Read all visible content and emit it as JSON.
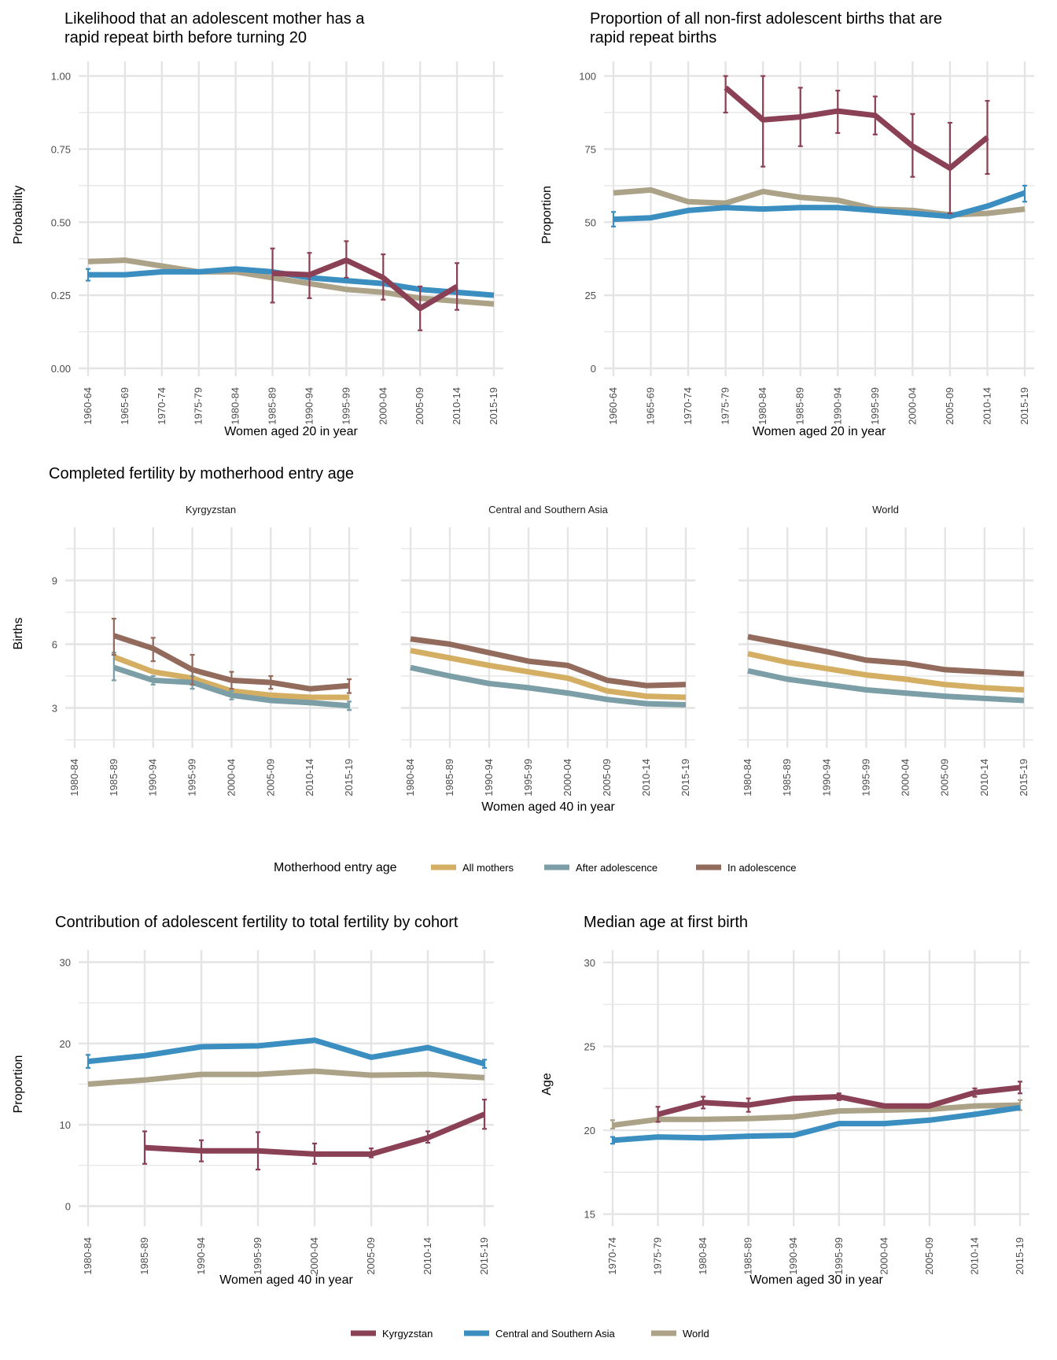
{
  "colors": {
    "kyrgyzstan": "#8B4155",
    "central_southern_asia": "#3A8FC0",
    "world": "#ACA288",
    "all_mothers": "#D4AE63",
    "after_adolescence": "#7C9EA6",
    "in_adolescence": "#926B5D",
    "grid": "#E4E4E4"
  },
  "legends": {
    "region": {
      "items": [
        {
          "key": "kyrgyzstan",
          "label": "Kyrgyzstan"
        },
        {
          "key": "central_southern_asia",
          "label": "Central and Southern Asia"
        },
        {
          "key": "world",
          "label": "World"
        }
      ]
    },
    "entry_age": {
      "title": "Motherhood entry age",
      "items": [
        {
          "key": "all_mothers",
          "label": "All mothers"
        },
        {
          "key": "after_adolescence",
          "label": "After adolescence"
        },
        {
          "key": "in_adolescence",
          "label": "In adolescence"
        }
      ]
    }
  },
  "chart_data": [
    {
      "id": "rapid-repeat-likelihood",
      "type": "line",
      "title": "Likelihood that an adolescent mother has a\nrapid repeat birth before turning 20",
      "xlabel": "Women aged 20 in year",
      "ylabel": "Probability",
      "categories": [
        "1960-64",
        "1965-69",
        "1970-74",
        "1975-79",
        "1980-84",
        "1985-89",
        "1990-94",
        "1995-99",
        "2000-04",
        "2005-09",
        "2010-14",
        "2015-19"
      ],
      "ylim": [
        0,
        1.05
      ],
      "yticks": [
        0,
        0.25,
        0.5,
        0.75,
        1.0
      ],
      "ytick_labels": [
        "0.00",
        "0.25",
        "0.50",
        "0.75",
        "1.00"
      ],
      "series": [
        {
          "name": "World",
          "key": "world",
          "values": [
            0.365,
            0.37,
            0.35,
            0.33,
            0.33,
            0.31,
            0.29,
            0.27,
            0.26,
            0.24,
            0.23,
            0.22
          ]
        },
        {
          "name": "Central and Southern Asia",
          "key": "central_southern_asia",
          "values": [
            0.32,
            0.32,
            0.33,
            0.33,
            0.34,
            0.33,
            0.31,
            0.3,
            0.29,
            0.27,
            0.26,
            0.25
          ],
          "err_low": [
            0.3,
            null,
            null,
            null,
            null,
            null,
            null,
            null,
            null,
            null,
            null,
            null
          ],
          "err_high": [
            0.34,
            null,
            null,
            null,
            null,
            null,
            null,
            null,
            null,
            null,
            null,
            null
          ]
        },
        {
          "name": "Kyrgyzstan",
          "key": "kyrgyzstan",
          "values": [
            null,
            null,
            null,
            null,
            null,
            0.325,
            0.32,
            0.37,
            0.31,
            0.205,
            0.28,
            null
          ],
          "err_low": [
            null,
            null,
            null,
            null,
            null,
            0.225,
            0.24,
            0.31,
            0.235,
            0.13,
            0.2,
            null
          ],
          "err_high": [
            null,
            null,
            null,
            null,
            null,
            0.41,
            0.395,
            0.435,
            0.39,
            0.28,
            0.36,
            null
          ]
        }
      ]
    },
    {
      "id": "rapid-repeat-proportion",
      "type": "line",
      "title": "Proportion of all non-first adolescent births that are\nrapid repeat births",
      "xlabel": "Women aged 20 in year",
      "ylabel": "Proportion",
      "categories": [
        "1960-64",
        "1965-69",
        "1970-74",
        "1975-79",
        "1980-84",
        "1985-89",
        "1990-94",
        "1995-99",
        "2000-04",
        "2005-09",
        "2010-14",
        "2015-19"
      ],
      "ylim": [
        0,
        105
      ],
      "yticks": [
        0,
        25,
        50,
        75,
        100
      ],
      "ytick_labels": [
        "0",
        "25",
        "50",
        "75",
        "100"
      ],
      "series": [
        {
          "name": "World",
          "key": "world",
          "values": [
            60,
            61,
            57,
            56.5,
            60.5,
            58.5,
            57.5,
            54.5,
            54,
            52.5,
            53,
            54.5
          ]
        },
        {
          "name": "Central and Southern Asia",
          "key": "central_southern_asia",
          "values": [
            51,
            51.5,
            54,
            55,
            54.5,
            55,
            55,
            54,
            53,
            52,
            55.5,
            60
          ],
          "err_low": [
            48.5,
            null,
            null,
            null,
            null,
            null,
            null,
            null,
            null,
            null,
            null,
            57
          ],
          "err_high": [
            53.5,
            null,
            null,
            null,
            null,
            null,
            null,
            null,
            null,
            null,
            null,
            62.5
          ]
        },
        {
          "name": "Kyrgyzstan",
          "key": "kyrgyzstan",
          "values": [
            null,
            null,
            null,
            96,
            85,
            86,
            88,
            86.5,
            76,
            68.5,
            79,
            null
          ],
          "err_low": [
            null,
            null,
            null,
            87.5,
            69,
            76,
            80.5,
            80,
            65.5,
            53,
            66.5,
            null
          ],
          "err_high": [
            null,
            null,
            null,
            100,
            100,
            96,
            95,
            93,
            87,
            84,
            91.5,
            null
          ]
        }
      ]
    },
    {
      "id": "completed-fertility",
      "type": "line",
      "title": "Completed fertility by motherhood entry age",
      "xlabel": "Women aged 40 in year",
      "ylabel": "Births",
      "categories": [
        "1980-84",
        "1985-89",
        "1990-94",
        "1995-99",
        "2000-04",
        "2005-09",
        "2010-14",
        "2015-19"
      ],
      "ylim": [
        1.5,
        11.5
      ],
      "yticks": [
        3,
        6,
        9
      ],
      "ytick_labels": [
        "3",
        "6",
        "9"
      ],
      "facets": [
        {
          "title": "Kyrgyzstan",
          "series": [
            {
              "name": "All mothers",
              "key": "all_mothers",
              "values": [
                null,
                5.4,
                4.7,
                4.4,
                3.8,
                3.6,
                3.5,
                3.5
              ]
            },
            {
              "name": "After adolescence",
              "key": "after_adolescence",
              "values": [
                null,
                4.9,
                4.3,
                4.2,
                3.6,
                3.35,
                3.25,
                3.1
              ],
              "err_low": [
                null,
                4.3,
                4.1,
                3.9,
                3.4,
                null,
                null,
                2.9
              ],
              "err_high": [
                null,
                5.6,
                4.5,
                4.5,
                3.8,
                null,
                null,
                3.3
              ]
            },
            {
              "name": "In adolescence",
              "key": "in_adolescence",
              "values": [
                null,
                6.4,
                5.8,
                4.8,
                4.3,
                4.2,
                3.9,
                4.05
              ],
              "err_low": [
                null,
                5.5,
                5.2,
                4.1,
                3.9,
                3.9,
                null,
                3.7
              ],
              "err_high": [
                null,
                7.2,
                6.3,
                5.5,
                4.7,
                4.5,
                null,
                4.35
              ]
            }
          ]
        },
        {
          "title": "Central and Southern Asia",
          "series": [
            {
              "name": "All mothers",
              "key": "all_mothers",
              "values": [
                5.7,
                5.35,
                5.0,
                4.7,
                4.4,
                3.8,
                3.55,
                3.5
              ]
            },
            {
              "name": "After adolescence",
              "key": "after_adolescence",
              "values": [
                4.9,
                4.5,
                4.15,
                3.95,
                3.7,
                3.4,
                3.2,
                3.15
              ]
            },
            {
              "name": "In adolescence",
              "key": "in_adolescence",
              "values": [
                6.25,
                6.0,
                5.6,
                5.2,
                5.0,
                4.3,
                4.05,
                4.1
              ]
            }
          ]
        },
        {
          "title": "World",
          "series": [
            {
              "name": "All mothers",
              "key": "all_mothers",
              "values": [
                5.55,
                5.15,
                4.85,
                4.55,
                4.35,
                4.1,
                3.95,
                3.85
              ]
            },
            {
              "name": "After adolescence",
              "key": "after_adolescence",
              "values": [
                4.75,
                4.35,
                4.1,
                3.85,
                3.7,
                3.55,
                3.45,
                3.35
              ]
            },
            {
              "name": "In adolescence",
              "key": "in_adolescence",
              "values": [
                6.35,
                6.0,
                5.65,
                5.25,
                5.1,
                4.8,
                4.7,
                4.6
              ]
            }
          ]
        }
      ]
    },
    {
      "id": "adolescent-contribution",
      "type": "line",
      "title": "Contribution of adolescent fertility to total fertility by cohort",
      "xlabel": "Women aged 40 in year",
      "ylabel": "Proportion",
      "categories": [
        "1980-84",
        "1985-89",
        "1990-94",
        "1995-99",
        "2000-04",
        "2005-09",
        "2010-14",
        "2015-19"
      ],
      "ylim": [
        -1.5,
        31.5
      ],
      "yticks": [
        0,
        10,
        20,
        30
      ],
      "ytick_labels": [
        "0",
        "10",
        "20",
        "30"
      ],
      "series": [
        {
          "name": "World",
          "key": "world",
          "values": [
            15.0,
            15.5,
            16.2,
            16.2,
            16.6,
            16.1,
            16.2,
            15.8
          ]
        },
        {
          "name": "Central and Southern Asia",
          "key": "central_southern_asia",
          "values": [
            17.8,
            18.5,
            19.6,
            19.7,
            20.4,
            18.3,
            19.5,
            17.5
          ],
          "err_low": [
            17.0,
            null,
            null,
            null,
            null,
            null,
            null,
            17.0
          ],
          "err_high": [
            18.6,
            null,
            null,
            null,
            null,
            null,
            null,
            18.0
          ]
        },
        {
          "name": "Kyrgyzstan",
          "key": "kyrgyzstan",
          "values": [
            null,
            7.2,
            6.8,
            6.8,
            6.4,
            6.4,
            8.4,
            11.3
          ],
          "err_low": [
            null,
            5.2,
            5.5,
            4.5,
            5.2,
            6.0,
            7.8,
            9.5
          ],
          "err_high": [
            null,
            9.2,
            8.1,
            9.1,
            7.7,
            7.1,
            9.2,
            13.1
          ]
        }
      ]
    },
    {
      "id": "median-age-first-birth",
      "type": "line",
      "title": "Median age at first birth",
      "xlabel": "Women aged 30 in year",
      "ylabel": "Age",
      "categories": [
        "1970-74",
        "1975-79",
        "1980-84",
        "1985-89",
        "1990-94",
        "1995-99",
        "2000-04",
        "2005-09",
        "2010-14",
        "2015-19"
      ],
      "ylim": [
        14.75,
        30.75
      ],
      "yticks": [
        15,
        20,
        25,
        30
      ],
      "ytick_labels": [
        "15",
        "20",
        "25",
        "30"
      ],
      "series": [
        {
          "name": "World",
          "key": "world",
          "values": [
            20.3,
            20.65,
            20.65,
            20.7,
            20.8,
            21.15,
            21.2,
            21.25,
            21.45,
            21.5
          ],
          "err_low": [
            20.1,
            null,
            null,
            null,
            null,
            null,
            null,
            null,
            null,
            21.2
          ],
          "err_high": [
            20.6,
            null,
            null,
            null,
            null,
            null,
            null,
            null,
            null,
            21.8
          ]
        },
        {
          "name": "Central and Southern Asia",
          "key": "central_southern_asia",
          "values": [
            19.4,
            19.6,
            19.55,
            19.65,
            19.7,
            20.4,
            20.4,
            20.6,
            20.95,
            21.35
          ],
          "err_low": [
            19.2,
            null,
            null,
            null,
            null,
            null,
            null,
            null,
            null,
            null
          ],
          "err_high": [
            19.6,
            null,
            null,
            null,
            null,
            null,
            null,
            null,
            null,
            null
          ]
        },
        {
          "name": "Kyrgyzstan",
          "key": "kyrgyzstan",
          "values": [
            null,
            20.95,
            21.65,
            21.5,
            21.9,
            22.0,
            21.45,
            21.45,
            22.25,
            22.55
          ],
          "err_low": [
            null,
            20.5,
            21.3,
            21.1,
            null,
            21.8,
            null,
            null,
            22.0,
            22.2
          ],
          "err_high": [
            null,
            21.4,
            22.0,
            21.9,
            null,
            22.2,
            null,
            null,
            22.5,
            22.9
          ]
        }
      ]
    }
  ]
}
